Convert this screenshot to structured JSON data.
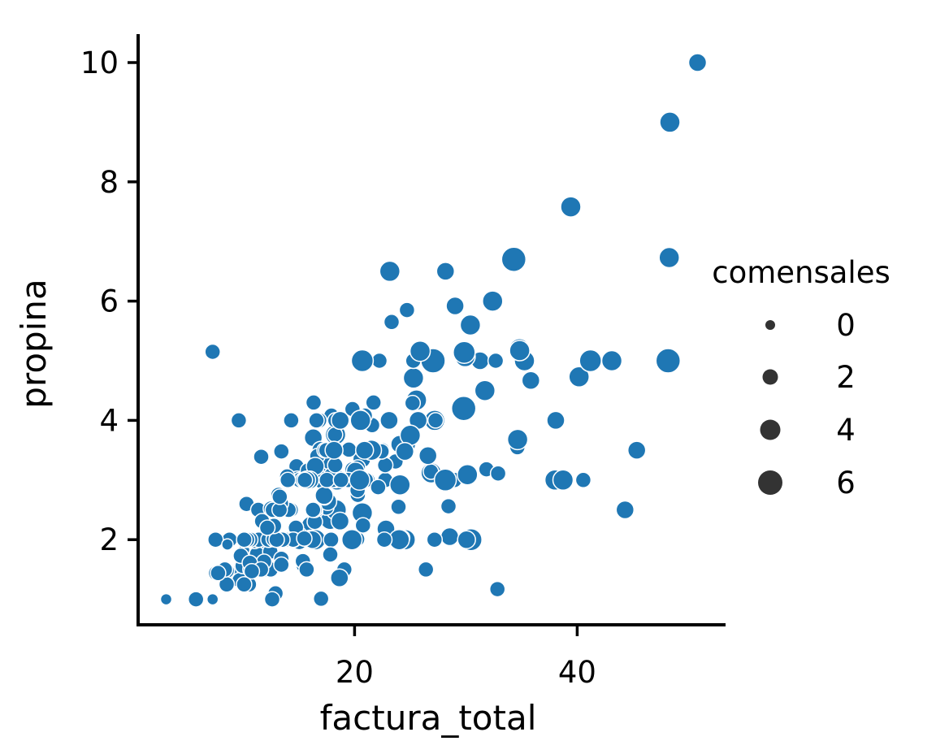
{
  "chart_data": {
    "type": "scatter",
    "title": "",
    "xlabel": "factura_total",
    "ylabel": "propina",
    "xlim": [
      1.2,
      54
    ],
    "ylim": [
      0.5,
      10.45
    ],
    "xticks": [
      20,
      40
    ],
    "yticks": [
      2,
      4,
      6,
      8,
      10
    ],
    "grid": false,
    "legend": {
      "title": "comensales",
      "position": "right",
      "entries": [
        {
          "label": "0",
          "size": 0
        },
        {
          "label": "2",
          "size": 2
        },
        {
          "label": "4",
          "size": 4
        },
        {
          "label": "6",
          "size": 6
        }
      ]
    },
    "marker_color": "#1f77b4",
    "legend_marker_color": "#333333",
    "size_variable": "comensales",
    "points": [
      [
        16.99,
        1.01,
        2
      ],
      [
        10.34,
        1.66,
        3
      ],
      [
        21.01,
        3.5,
        3
      ],
      [
        23.68,
        3.31,
        2
      ],
      [
        24.59,
        3.61,
        4
      ],
      [
        25.29,
        4.71,
        4
      ],
      [
        8.77,
        2.0,
        2
      ],
      [
        26.88,
        3.12,
        4
      ],
      [
        15.04,
        1.96,
        2
      ],
      [
        14.78,
        3.23,
        2
      ],
      [
        10.27,
        1.71,
        2
      ],
      [
        35.26,
        5.0,
        4
      ],
      [
        15.42,
        1.57,
        2
      ],
      [
        18.43,
        3.0,
        4
      ],
      [
        14.83,
        3.02,
        2
      ],
      [
        21.58,
        3.92,
        2
      ],
      [
        10.33,
        1.67,
        3
      ],
      [
        16.29,
        3.71,
        3
      ],
      [
        16.97,
        3.5,
        3
      ],
      [
        20.65,
        3.35,
        3
      ],
      [
        17.92,
        4.08,
        2
      ],
      [
        20.29,
        2.75,
        2
      ],
      [
        15.77,
        2.23,
        2
      ],
      [
        39.42,
        7.58,
        4
      ],
      [
        19.82,
        3.18,
        2
      ],
      [
        17.81,
        2.34,
        4
      ],
      [
        13.37,
        2.0,
        2
      ],
      [
        12.69,
        2.0,
        2
      ],
      [
        21.7,
        4.3,
        2
      ],
      [
        19.65,
        3.0,
        2
      ],
      [
        9.55,
        1.45,
        2
      ],
      [
        18.35,
        2.5,
        4
      ],
      [
        15.06,
        3.0,
        2
      ],
      [
        20.69,
        2.45,
        4
      ],
      [
        17.78,
        3.27,
        2
      ],
      [
        24.06,
        3.6,
        3
      ],
      [
        16.31,
        2.0,
        3
      ],
      [
        16.93,
        3.07,
        3
      ],
      [
        18.69,
        2.31,
        3
      ],
      [
        31.27,
        5.0,
        3
      ],
      [
        16.04,
        2.24,
        3
      ],
      [
        17.46,
        2.54,
        2
      ],
      [
        13.94,
        3.06,
        2
      ],
      [
        9.68,
        1.32,
        2
      ],
      [
        30.4,
        5.6,
        4
      ],
      [
        18.29,
        3.0,
        2
      ],
      [
        22.23,
        5.0,
        2
      ],
      [
        32.4,
        6.0,
        4
      ],
      [
        28.55,
        2.05,
        3
      ],
      [
        18.04,
        3.0,
        2
      ],
      [
        12.54,
        2.5,
        2
      ],
      [
        10.29,
        2.6,
        2
      ],
      [
        34.81,
        5.2,
        4
      ],
      [
        9.94,
        1.56,
        2
      ],
      [
        25.56,
        4.34,
        4
      ],
      [
        19.49,
        3.51,
        2
      ],
      [
        38.01,
        3.0,
        4
      ],
      [
        26.41,
        1.5,
        2
      ],
      [
        11.24,
        1.76,
        2
      ],
      [
        48.27,
        6.73,
        4
      ],
      [
        20.29,
        3.21,
        2
      ],
      [
        13.81,
        2.0,
        2
      ],
      [
        11.02,
        1.98,
        2
      ],
      [
        18.29,
        3.76,
        4
      ],
      [
        17.59,
        2.64,
        3
      ],
      [
        20.08,
        3.15,
        3
      ],
      [
        16.45,
        2.47,
        2
      ],
      [
        3.07,
        1.0,
        1
      ],
      [
        20.23,
        2.01,
        2
      ],
      [
        15.01,
        2.09,
        2
      ],
      [
        12.02,
        1.97,
        2
      ],
      [
        17.07,
        3.0,
        3
      ],
      [
        26.86,
        3.14,
        2
      ],
      [
        25.28,
        5.0,
        2
      ],
      [
        14.73,
        2.2,
        2
      ],
      [
        10.51,
        1.25,
        2
      ],
      [
        17.92,
        3.08,
        2
      ],
      [
        27.2,
        4.0,
        4
      ],
      [
        22.76,
        3.0,
        2
      ],
      [
        17.29,
        2.71,
        2
      ],
      [
        19.44,
        3.0,
        2
      ],
      [
        16.66,
        3.4,
        2
      ],
      [
        10.07,
        1.83,
        1
      ],
      [
        32.68,
        5.0,
        2
      ],
      [
        15.98,
        2.03,
        2
      ],
      [
        34.83,
        5.17,
        4
      ],
      [
        13.03,
        2.0,
        2
      ],
      [
        18.28,
        4.0,
        2
      ],
      [
        24.71,
        5.85,
        2
      ],
      [
        21.16,
        3.0,
        2
      ],
      [
        28.97,
        3.0,
        2
      ],
      [
        22.49,
        3.5,
        2
      ],
      [
        5.75,
        1.0,
        2
      ],
      [
        16.32,
        4.3,
        2
      ],
      [
        22.75,
        3.25,
        2
      ],
      [
        40.17,
        4.73,
        4
      ],
      [
        27.28,
        4.0,
        2
      ],
      [
        12.03,
        1.5,
        2
      ],
      [
        21.01,
        3.0,
        2
      ],
      [
        12.46,
        1.5,
        2
      ],
      [
        11.35,
        2.5,
        2
      ],
      [
        15.38,
        3.0,
        2
      ],
      [
        44.3,
        2.5,
        3
      ],
      [
        22.42,
        3.48,
        2
      ],
      [
        20.92,
        4.08,
        2
      ],
      [
        15.36,
        1.64,
        2
      ],
      [
        20.49,
        4.06,
        2
      ],
      [
        25.21,
        4.29,
        2
      ],
      [
        18.24,
        3.76,
        2
      ],
      [
        14.31,
        4.0,
        2
      ],
      [
        14.0,
        3.0,
        2
      ],
      [
        7.25,
        1.0,
        1
      ],
      [
        38.07,
        4.0,
        3
      ],
      [
        23.95,
        2.55,
        2
      ],
      [
        25.71,
        4.0,
        3
      ],
      [
        17.31,
        3.5,
        2
      ],
      [
        29.93,
        5.07,
        4
      ],
      [
        10.65,
        1.5,
        2
      ],
      [
        12.43,
        1.8,
        2
      ],
      [
        24.08,
        2.92,
        4
      ],
      [
        11.69,
        2.31,
        2
      ],
      [
        13.42,
        1.68,
        2
      ],
      [
        14.26,
        2.5,
        2
      ],
      [
        15.95,
        2.0,
        2
      ],
      [
        12.48,
        2.52,
        2
      ],
      [
        29.8,
        4.2,
        6
      ],
      [
        8.52,
        1.48,
        2
      ],
      [
        14.52,
        2.0,
        2
      ],
      [
        11.38,
        2.0,
        2
      ],
      [
        22.82,
        2.18,
        3
      ],
      [
        19.08,
        1.5,
        2
      ],
      [
        20.27,
        2.83,
        2
      ],
      [
        11.17,
        1.5,
        2
      ],
      [
        12.26,
        2.0,
        2
      ],
      [
        18.26,
        3.25,
        2
      ],
      [
        8.51,
        1.25,
        2
      ],
      [
        10.33,
        2.0,
        2
      ],
      [
        14.15,
        2.0,
        2
      ],
      [
        16.0,
        2.0,
        2
      ],
      [
        13.16,
        2.75,
        2
      ],
      [
        17.47,
        3.5,
        2
      ],
      [
        34.3,
        6.7,
        6
      ],
      [
        41.19,
        5.0,
        5
      ],
      [
        27.05,
        5.0,
        6
      ],
      [
        16.43,
        2.3,
        2
      ],
      [
        8.35,
        1.5,
        2
      ],
      [
        18.64,
        1.36,
        3
      ],
      [
        11.87,
        1.63,
        2
      ],
      [
        9.78,
        1.73,
        2
      ],
      [
        7.51,
        2.0,
        2
      ],
      [
        14.07,
        2.5,
        2
      ],
      [
        13.13,
        2.0,
        2
      ],
      [
        17.26,
        2.74,
        3
      ],
      [
        24.55,
        2.0,
        4
      ],
      [
        19.77,
        2.0,
        4
      ],
      [
        29.85,
        5.14,
        5
      ],
      [
        48.17,
        5.0,
        6
      ],
      [
        25.0,
        3.75,
        4
      ],
      [
        13.39,
        2.61,
        2
      ],
      [
        16.49,
        2.0,
        4
      ],
      [
        21.5,
        3.5,
        4
      ],
      [
        12.66,
        2.5,
        2
      ],
      [
        16.21,
        2.0,
        3
      ],
      [
        13.81,
        2.0,
        2
      ],
      [
        17.51,
        3.0,
        2
      ],
      [
        24.52,
        3.48,
        3
      ],
      [
        20.76,
        2.24,
        2
      ],
      [
        31.71,
        4.5,
        4
      ],
      [
        10.59,
        1.61,
        2
      ],
      [
        10.63,
        2.0,
        2
      ],
      [
        50.81,
        10.0,
        3
      ],
      [
        15.81,
        3.16,
        2
      ],
      [
        7.25,
        5.15,
        2
      ],
      [
        31.85,
        3.18,
        2
      ],
      [
        16.82,
        4.0,
        2
      ],
      [
        32.9,
        3.11,
        2
      ],
      [
        17.89,
        2.0,
        2
      ],
      [
        14.48,
        2.0,
        2
      ],
      [
        9.6,
        4.0,
        2
      ],
      [
        34.63,
        3.55,
        2
      ],
      [
        34.65,
        3.68,
        4
      ],
      [
        23.33,
        5.65,
        2
      ],
      [
        45.35,
        3.5,
        3
      ],
      [
        23.17,
        6.5,
        4
      ],
      [
        40.55,
        3.0,
        2
      ],
      [
        20.69,
        5.0,
        5
      ],
      [
        20.9,
        3.5,
        3
      ],
      [
        30.46,
        2.0,
        5
      ],
      [
        18.15,
        3.5,
        3
      ],
      [
        23.1,
        4.0,
        3
      ],
      [
        15.69,
        1.5,
        2
      ],
      [
        19.81,
        4.19,
        2
      ],
      [
        28.44,
        2.56,
        2
      ],
      [
        15.48,
        2.02,
        2
      ],
      [
        16.58,
        4.0,
        2
      ],
      [
        7.56,
        1.44,
        2
      ],
      [
        10.34,
        2.0,
        2
      ],
      [
        43.11,
        5.0,
        4
      ],
      [
        13.0,
        2.0,
        2
      ],
      [
        13.51,
        2.0,
        2
      ],
      [
        18.71,
        4.0,
        3
      ],
      [
        12.74,
        2.01,
        2
      ],
      [
        13.0,
        2.0,
        2
      ],
      [
        16.4,
        2.5,
        2
      ],
      [
        20.53,
        4.0,
        4
      ],
      [
        16.47,
        3.23,
        3
      ],
      [
        26.59,
        3.41,
        3
      ],
      [
        38.73,
        3.0,
        4
      ],
      [
        24.27,
        2.03,
        2
      ],
      [
        12.76,
        2.23,
        2
      ],
      [
        30.06,
        2.0,
        3
      ],
      [
        25.89,
        5.16,
        4
      ],
      [
        48.33,
        9.0,
        4
      ],
      [
        13.27,
        2.5,
        2
      ],
      [
        28.17,
        6.5,
        3
      ],
      [
        12.9,
        1.1,
        2
      ],
      [
        28.15,
        3.0,
        5
      ],
      [
        11.59,
        1.5,
        2
      ],
      [
        7.74,
        1.44,
        2
      ],
      [
        30.14,
        3.09,
        4
      ],
      [
        12.16,
        2.2,
        2
      ],
      [
        13.42,
        3.48,
        2
      ],
      [
        8.58,
        1.92,
        1
      ],
      [
        15.98,
        3.0,
        3
      ],
      [
        13.42,
        1.58,
        2
      ],
      [
        16.27,
        2.5,
        2
      ],
      [
        10.09,
        2.0,
        2
      ],
      [
        20.45,
        3.0,
        4
      ],
      [
        13.28,
        2.72,
        2
      ],
      [
        22.12,
        2.88,
        2
      ],
      [
        24.01,
        2.0,
        4
      ],
      [
        15.69,
        3.0,
        3
      ],
      [
        11.61,
        3.39,
        2
      ],
      [
        10.77,
        1.47,
        2
      ],
      [
        15.53,
        3.0,
        2
      ],
      [
        10.07,
        1.25,
        2
      ],
      [
        12.6,
        1.0,
        2
      ],
      [
        32.83,
        1.17,
        2
      ],
      [
        35.83,
        4.67,
        3
      ],
      [
        29.03,
        5.92,
        3
      ],
      [
        27.18,
        2.0,
        2
      ],
      [
        22.67,
        2.0,
        2
      ],
      [
        17.82,
        1.75,
        2
      ],
      [
        18.78,
        3.0,
        2
      ]
    ]
  }
}
